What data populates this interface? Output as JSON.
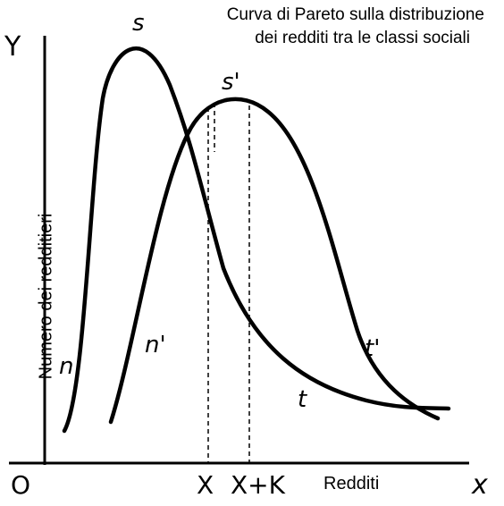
{
  "title": [
    "Curva di Pareto sulla distribuzione",
    "dei redditi tra le classi sociali"
  ],
  "axes": {
    "y_letter": "Y",
    "x_letter": "x",
    "origin": "O",
    "y_label": "Numero dei redditieri",
    "x_label": "Redditi",
    "x_marks": [
      "X",
      "X+K"
    ]
  },
  "curves": [
    {
      "name": "curve-s",
      "labels": [
        "n",
        "s",
        "t"
      ]
    },
    {
      "name": "curve-s-prime",
      "labels": [
        "n'",
        "s'",
        "t'"
      ]
    }
  ],
  "colors": {
    "ink": "#000000",
    "background": "#ffffff"
  }
}
